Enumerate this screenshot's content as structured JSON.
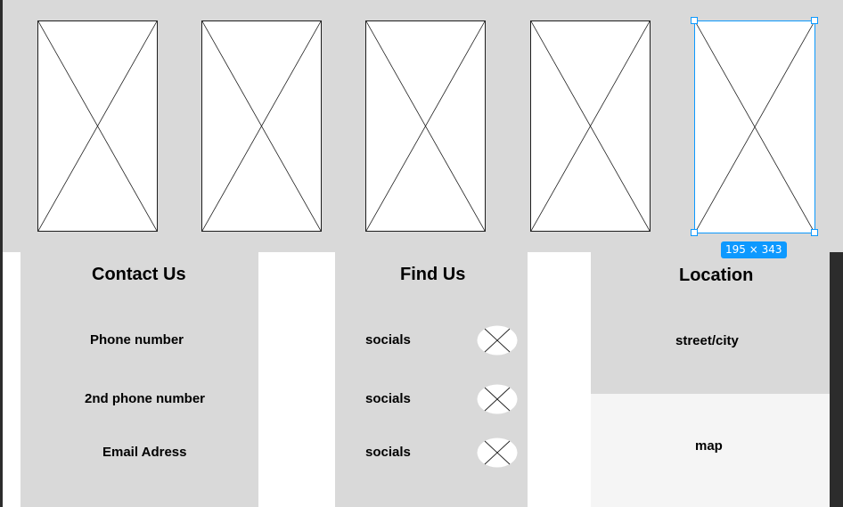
{
  "selection": {
    "size_label": "195 × 343",
    "accent_color": "#0d99ff"
  },
  "placeholders": [
    {
      "icon": "image-placeholder-icon"
    },
    {
      "icon": "image-placeholder-icon"
    },
    {
      "icon": "image-placeholder-icon"
    },
    {
      "icon": "image-placeholder-icon"
    },
    {
      "icon": "image-placeholder-icon",
      "selected": true
    }
  ],
  "contact": {
    "heading": "Contact Us",
    "phone": "Phone number",
    "phone2": "2nd phone number",
    "email": "Email Adress"
  },
  "find": {
    "heading": "Find Us",
    "socials": [
      "socials",
      "socials",
      "socials"
    ],
    "icon": "social-placeholder-icon"
  },
  "location": {
    "heading": "Location",
    "street": "street/city",
    "map": "map"
  },
  "colors": {
    "frame_gray": "#d9d9d9",
    "map_bg": "#f5f5f5",
    "canvas_dark": "#2c2c2c"
  }
}
